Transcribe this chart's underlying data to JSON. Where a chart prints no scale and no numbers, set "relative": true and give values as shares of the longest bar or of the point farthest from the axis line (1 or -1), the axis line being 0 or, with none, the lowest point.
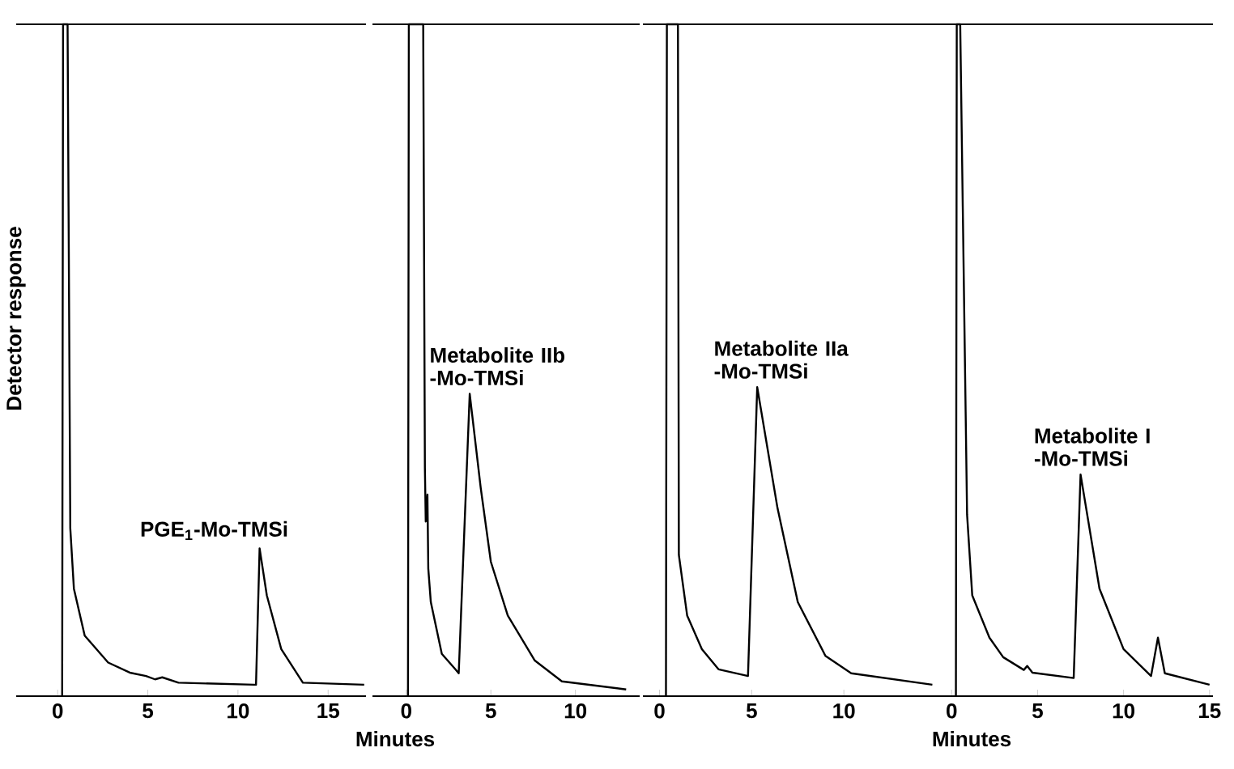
{
  "chart_data": [
    {
      "type": "line",
      "relative": true,
      "color": "#000000",
      "ylabel": "Detector response",
      "xlabel": "Minutes",
      "xlim": [
        -2.3,
        17.1
      ],
      "xticks": [
        0,
        5,
        10,
        15
      ],
      "x": [
        0.25,
        0.3,
        0.55,
        0.7,
        0.9,
        1.5,
        2.8,
        4.0,
        4.9,
        5.4,
        5.8,
        6.7,
        10.9,
        11.0,
        11.2,
        11.6,
        12.4,
        13.6,
        17
      ],
      "values": [
        0,
        1,
        1,
        0.25,
        0.16,
        0.09,
        0.05,
        0.035,
        0.03,
        0.025,
        0.028,
        0.02,
        0.017,
        0.017,
        0.22,
        0.15,
        0.07,
        0.02,
        0.017
      ],
      "annotations": [
        {
          "text": "PGE$_{1}$-Mo-TMSi",
          "x": 11.2,
          "y": 0.22
        }
      ]
    },
    {
      "type": "line",
      "relative": true,
      "color": "#000000",
      "xlim": [
        -2.0,
        13.8
      ],
      "xticks": [
        0,
        5,
        10
      ],
      "x": [
        0.1,
        0.15,
        1.0,
        1.1,
        1.15,
        1.25,
        1.3,
        1.45,
        2.1,
        2.9,
        3.1,
        3.75,
        4.4,
        5.0,
        6.0,
        7.6,
        9.2,
        13
      ],
      "values": [
        0,
        1,
        1,
        0.34,
        0.26,
        0.3,
        0.19,
        0.14,
        0.063,
        0.04,
        0.034,
        0.45,
        0.31,
        0.2,
        0.12,
        0.053,
        0.022,
        0.01
      ],
      "annotations": [
        {
          "text": "Metabolite IIb -Mo-TMSi",
          "x": 3.75,
          "y": 0.45
        }
      ]
    },
    {
      "type": "line",
      "relative": true,
      "color": "#000000",
      "xlabel": "Minutes",
      "xlim": [
        -0.9,
        15.0
      ],
      "xticks": [
        0,
        5,
        10
      ],
      "x": [
        0.35,
        0.4,
        1.0,
        1.05,
        1.5,
        2.3,
        3.2,
        4.8,
        5.3,
        6.4,
        7.5,
        9,
        10.4,
        14.8
      ],
      "values": [
        0,
        1,
        1,
        0.21,
        0.12,
        0.07,
        0.04,
        0.03,
        0.46,
        0.28,
        0.14,
        0.06,
        0.034,
        0.017
      ],
      "annotations": [
        {
          "text": "Metabolite IIa -Mo-TMSi",
          "x": 5.3,
          "y": 0.46
        }
      ]
    },
    {
      "type": "line",
      "relative": true,
      "color": "#000000",
      "xlim": [
        -1.0,
        15.2
      ],
      "xticks": [
        0,
        5,
        10,
        15
      ],
      "x": [
        0.25,
        0.3,
        0.5,
        0.9,
        1.2,
        2.2,
        3.0,
        4.2,
        4.4,
        4.7,
        7.1,
        7.5,
        8.6,
        10,
        11.6,
        12.0,
        12.4,
        15
      ],
      "values": [
        0,
        1,
        1,
        0.27,
        0.15,
        0.087,
        0.058,
        0.039,
        0.045,
        0.035,
        0.027,
        0.33,
        0.16,
        0.07,
        0.03,
        0.087,
        0.034,
        0.017
      ],
      "annotations": [
        {
          "text": "Metabolite I -Mo-TMSi",
          "x": 7.5,
          "y": 0.33
        }
      ]
    }
  ]
}
